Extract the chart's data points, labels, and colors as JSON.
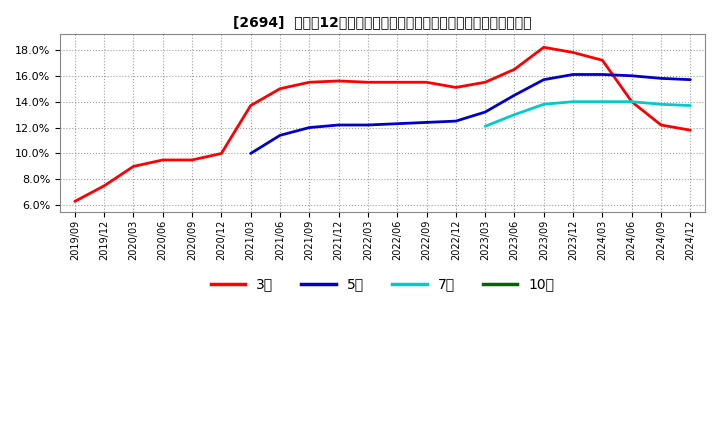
{
  "title": "[2694]  売上高12か月移動合計の対前年同期増減率の標準偏差の推移",
  "ylim": [
    0.055,
    0.192
  ],
  "yticks": [
    0.06,
    0.08,
    0.1,
    0.12,
    0.14,
    0.16,
    0.18
  ],
  "legend_labels": [
    "3年",
    "5年",
    "7年",
    "10年"
  ],
  "bg_color": "#ffffff",
  "fig_bg_color": "#ffffff",
  "series": [
    {
      "label": "3年",
      "color": "#ff0000",
      "y": [
        0.063,
        0.075,
        0.09,
        0.095,
        0.095,
        0.1,
        0.137,
        0.15,
        0.155,
        0.156,
        0.155,
        0.155,
        0.155,
        0.151,
        0.155,
        0.165,
        0.182,
        0.178,
        0.172,
        0.14,
        0.122,
        0.118
      ]
    },
    {
      "label": "5年",
      "color": "#0000cc",
      "y": [
        null,
        null,
        null,
        null,
        null,
        null,
        0.1,
        0.114,
        0.12,
        0.122,
        0.122,
        0.123,
        0.124,
        0.125,
        0.132,
        0.145,
        0.157,
        0.161,
        0.161,
        0.16,
        0.158,
        0.157
      ]
    },
    {
      "label": "7年",
      "color": "#00cccc",
      "y": [
        null,
        null,
        null,
        null,
        null,
        null,
        null,
        null,
        null,
        null,
        null,
        null,
        null,
        null,
        0.121,
        0.13,
        0.138,
        0.14,
        0.14,
        0.14,
        0.138,
        0.137
      ]
    },
    {
      "label": "10年",
      "color": "#006600",
      "y": [
        null,
        null,
        null,
        null,
        null,
        null,
        null,
        null,
        null,
        null,
        null,
        null,
        null,
        null,
        null,
        null,
        null,
        null,
        null,
        null,
        null,
        null
      ]
    }
  ],
  "xtick_labels": [
    "2019/09",
    "2019/12",
    "2020/03",
    "2020/06",
    "2020/09",
    "2020/12",
    "2021/03",
    "2021/06",
    "2021/09",
    "2021/12",
    "2022/03",
    "2022/06",
    "2022/09",
    "2022/12",
    "2023/03",
    "2023/06",
    "2023/09",
    "2023/12",
    "2024/03",
    "2024/06",
    "2024/09",
    "2024/12"
  ]
}
